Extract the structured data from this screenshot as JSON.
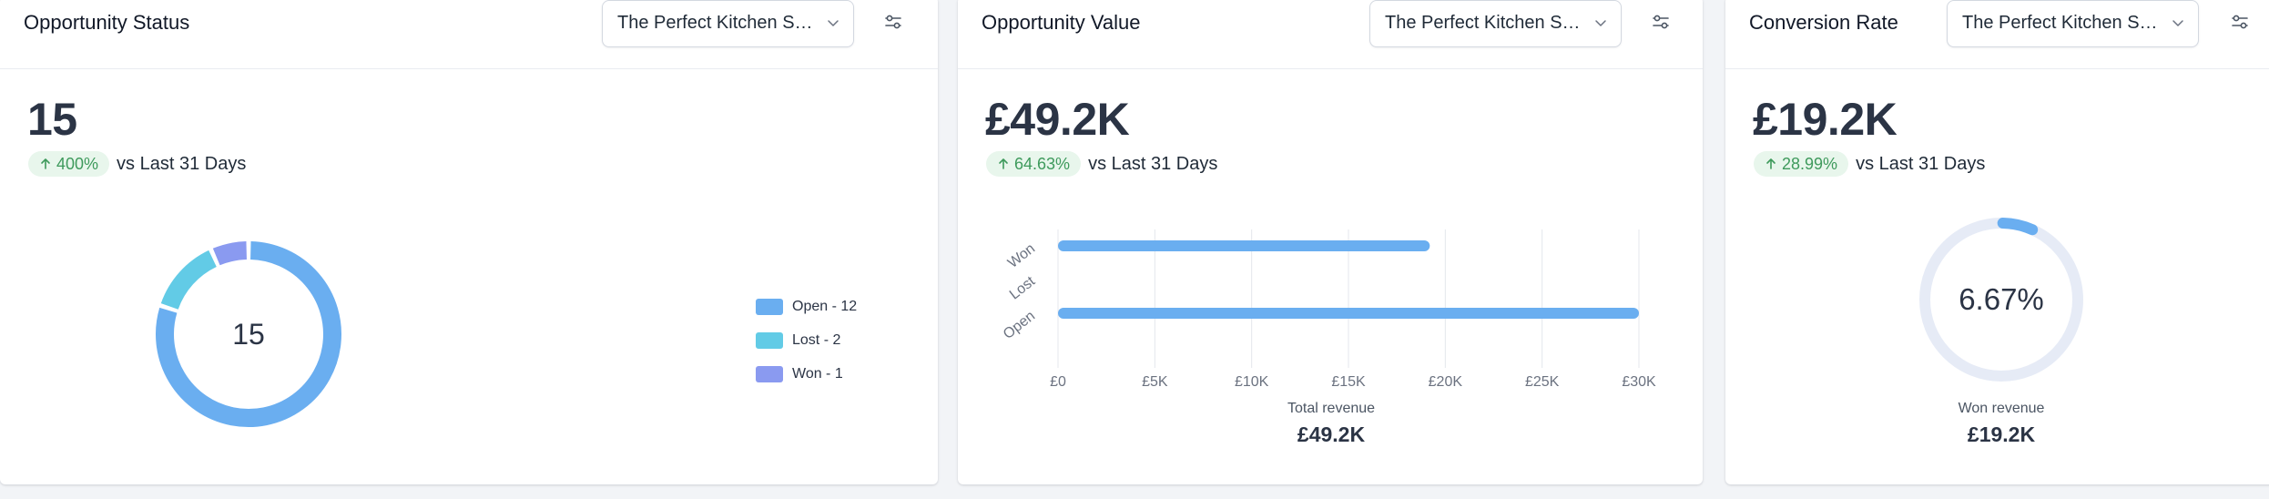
{
  "colors": {
    "blue": "#6aaef0",
    "cyan": "#62cbe6",
    "violet": "#8a9af0",
    "gauge_track": "#e6ebf6",
    "gridline": "#e4e7ec",
    "trend_green": "#3e9a5c"
  },
  "cards": {
    "status": {
      "title": "Opportunity Status",
      "pipeline": "The Perfect Kitchen Sal...",
      "value": "15",
      "trend": "400%",
      "trend_text": "vs Last 31 Days",
      "donut_center": "15"
    },
    "value": {
      "title": "Opportunity Value",
      "pipeline": "The Perfect Kitchen Sal...",
      "value": "£49.2K",
      "trend": "64.63%",
      "trend_text": "vs Last 31 Days",
      "summary_label": "Total revenue",
      "summary_value": "£49.2K"
    },
    "conversion": {
      "title": "Conversion Rate",
      "pipeline": "The Perfect Kitchen Sal...",
      "value": "£19.2K",
      "trend": "28.99%",
      "trend_text": "vs Last 31 Days",
      "gauge_center": "6.67%",
      "summary_label": "Won revenue",
      "summary_value": "£19.2K"
    }
  },
  "chart_data": [
    {
      "type": "pie",
      "title": "",
      "donut": true,
      "legend_position": "right",
      "legend": [
        "Open - 12",
        "Lost - 2",
        "Won - 1"
      ],
      "series": [
        {
          "name": "Open",
          "value": 12,
          "color": "#6aaef0"
        },
        {
          "name": "Lost",
          "value": 2,
          "color": "#62cbe6"
        },
        {
          "name": "Won",
          "value": 1,
          "color": "#8a9af0"
        }
      ]
    },
    {
      "type": "bar",
      "orientation": "horizontal",
      "title": "",
      "categories": [
        "Won",
        "Lost",
        "Open"
      ],
      "values": [
        19200,
        0,
        30000
      ],
      "xlim": [
        0,
        30000
      ],
      "xticks": [
        "£0",
        "£5K",
        "£10K",
        "£15K",
        "£20K",
        "£25K",
        "£30K"
      ],
      "grid": true,
      "color": "#6aaef0"
    },
    {
      "type": "pie",
      "title": "",
      "gauge": true,
      "value_fraction": 0.0667,
      "label": "6.67%",
      "color": "#6aaef0",
      "track_color": "#e6ebf6"
    }
  ]
}
